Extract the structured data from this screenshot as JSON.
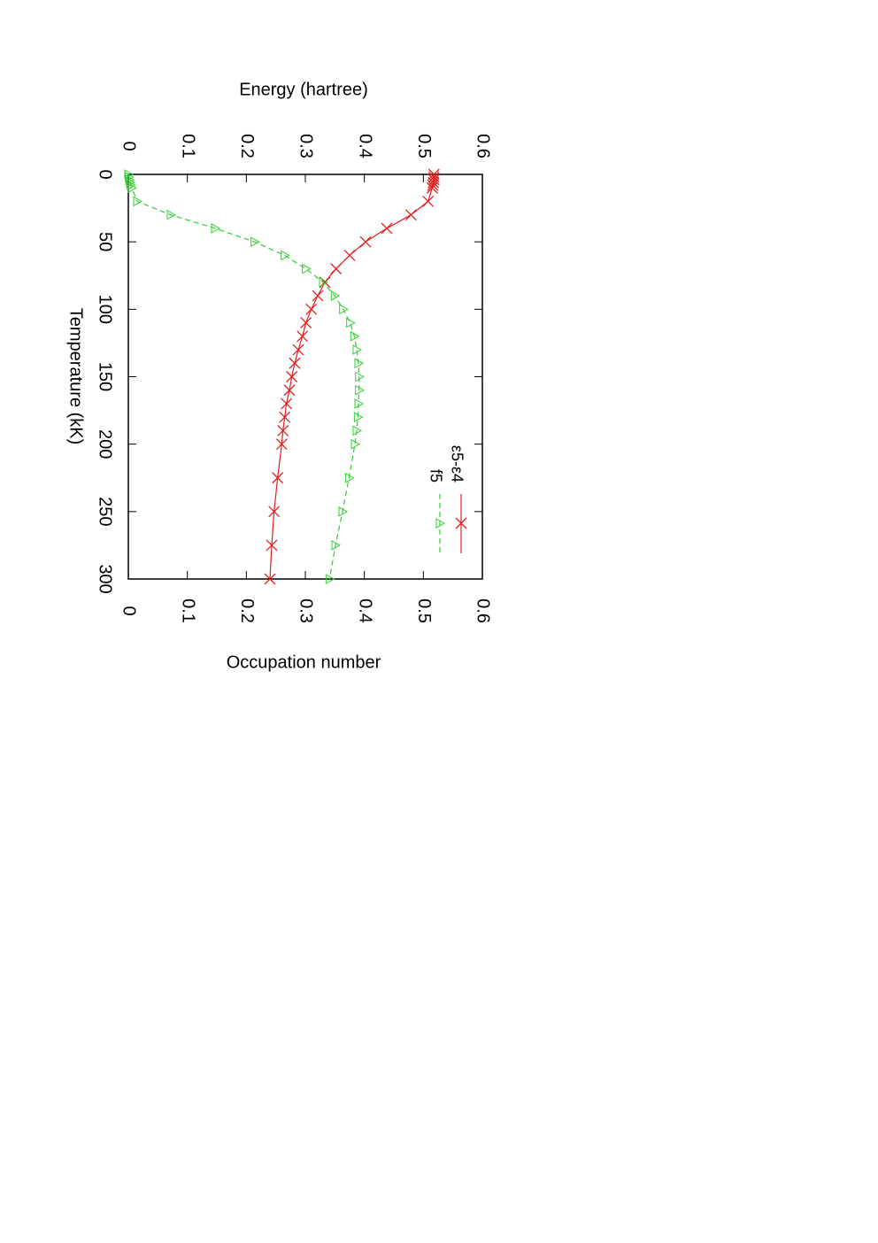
{
  "chart_data": {
    "type": "line",
    "x_label": "Temperature (kK)",
    "y_label": "Energy (hartree)",
    "y2_label": "Occupation number",
    "x": [
      0,
      2,
      4,
      6,
      8,
      10,
      20,
      30,
      40,
      50,
      60,
      70,
      80,
      90,
      100,
      110,
      120,
      130,
      140,
      150,
      160,
      170,
      180,
      190,
      200,
      225,
      250,
      275,
      300
    ],
    "xlim": [
      0,
      300
    ],
    "xticks": [
      0,
      50,
      100,
      150,
      200,
      250,
      300
    ],
    "ylim": [
      0,
      0.6
    ],
    "yticks": [
      0,
      0.1,
      0.2,
      0.3,
      0.4,
      0.5,
      0.6
    ],
    "y2lim": [
      0,
      0.6
    ],
    "y2ticks": [
      0,
      0.1,
      0.2,
      0.3,
      0.4,
      0.5,
      0.6
    ],
    "series": [
      {
        "name": "ε5-ε4",
        "color": "#e02020",
        "axis": "y",
        "marker": "cross",
        "dash": false,
        "values": [
          0.518,
          0.518,
          0.518,
          0.517,
          0.516,
          0.515,
          0.508,
          0.479,
          0.438,
          0.402,
          0.375,
          0.352,
          0.333,
          0.321,
          0.31,
          0.301,
          0.295,
          0.288,
          0.282,
          0.277,
          0.273,
          0.268,
          0.265,
          0.262,
          0.26,
          0.253,
          0.247,
          0.243,
          0.24
        ]
      },
      {
        "name": "f5",
        "color": "#30d030",
        "axis": "y2",
        "marker": "triangle",
        "dash": true,
        "values": [
          0,
          0.001,
          0.002,
          0.003,
          0.004,
          0.006,
          0.015,
          0.072,
          0.147,
          0.214,
          0.265,
          0.301,
          0.33,
          0.35,
          0.364,
          0.376,
          0.383,
          0.387,
          0.39,
          0.391,
          0.391,
          0.39,
          0.389,
          0.387,
          0.384,
          0.374,
          0.363,
          0.351,
          0.341
        ]
      }
    ]
  }
}
